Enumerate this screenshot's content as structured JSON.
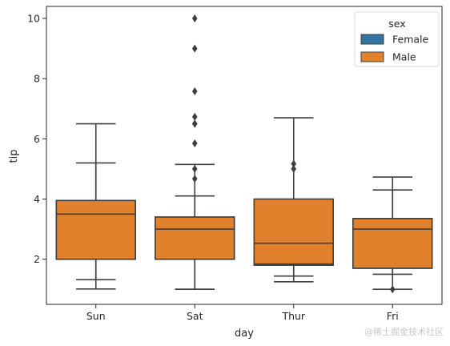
{
  "chart_data": {
    "type": "boxplot",
    "xlabel": "day",
    "ylabel": "tip",
    "categories": [
      "Sun",
      "Sat",
      "Thur",
      "Fri"
    ],
    "ylim": [
      0.5,
      10.4
    ],
    "yticks": [
      2,
      4,
      6,
      8,
      10
    ],
    "legend": {
      "title": "sex",
      "placement": "top-right"
    },
    "series": [
      {
        "name": "Female",
        "color": "#3274a1",
        "boxes": [
          {
            "category": "Sun",
            "whisker_low": 1.01,
            "q1": 2.0,
            "median": 3.1,
            "q3": 3.95,
            "whisker_high": 5.2,
            "outliers": []
          },
          {
            "category": "Sat",
            "whisker_low": 1.0,
            "q1": 2.0,
            "median": 2.65,
            "q3": 3.4,
            "whisker_high": 5.15,
            "outliers": [
              5.85,
              6.5
            ]
          },
          {
            "category": "Thur",
            "whisker_low": 1.25,
            "q1": 1.8,
            "median": 2.0,
            "q3": 2.0,
            "whisker_high": 2.0,
            "outliers": []
          },
          {
            "category": "Fri",
            "whisker_low": 1.0,
            "q1": 1.7,
            "median": 2.6,
            "q3": 3.35,
            "whisker_high": 4.3,
            "outliers": []
          }
        ]
      },
      {
        "name": "Male",
        "color": "#e1812c",
        "boxes": [
          {
            "category": "Sun",
            "whisker_low": 1.32,
            "q1": 2.0,
            "median": 3.5,
            "q3": 3.95,
            "whisker_high": 6.5,
            "outliers": []
          },
          {
            "category": "Sat",
            "whisker_low": 1.0,
            "q1": 2.0,
            "median": 3.0,
            "q3": 3.4,
            "whisker_high": 4.1,
            "outliers": [
              4.67,
              5.0,
              6.5,
              6.73,
              7.58,
              9.0,
              10.0
            ]
          },
          {
            "category": "Thur",
            "whisker_low": 1.44,
            "q1": 1.84,
            "median": 2.53,
            "q3": 4.0,
            "whisker_high": 6.7,
            "outliers": [
              5.0,
              5.17
            ]
          },
          {
            "category": "Fri",
            "whisker_low": 1.5,
            "q1": 1.7,
            "median": 3.0,
            "q3": 3.35,
            "whisker_high": 4.73,
            "outliers": [
              1.0
            ]
          }
        ]
      }
    ]
  },
  "watermark": "@稀土掘金技术社区"
}
